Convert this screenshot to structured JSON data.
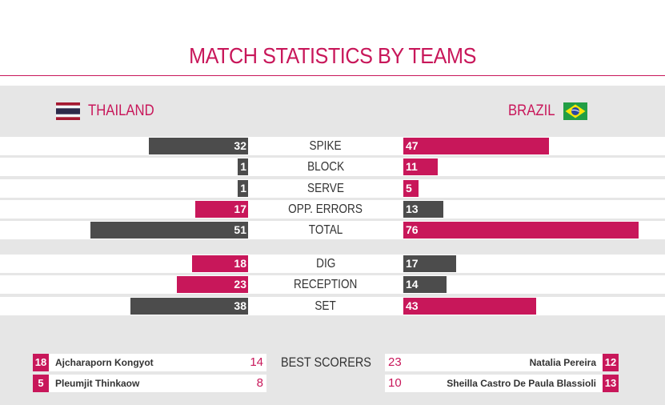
{
  "title": "MATCH STATISTICS BY TEAMS",
  "teams": {
    "left": {
      "name": "THAILAND",
      "flag": "thailand-flag"
    },
    "right": {
      "name": "BRAZIL",
      "flag": "brazil-flag"
    }
  },
  "colors": {
    "accent": "#c8175a",
    "dark": "#4c4c4c",
    "panel": "#e6e6e6"
  },
  "stats": [
    {
      "label": "SPIKE",
      "left": 32,
      "right": 47,
      "left_color": "gray",
      "right_color": "pink"
    },
    {
      "label": "BLOCK",
      "left": 1,
      "right": 11,
      "left_color": "gray",
      "right_color": "pink"
    },
    {
      "label": "SERVE",
      "left": 1,
      "right": 5,
      "left_color": "gray",
      "right_color": "pink"
    },
    {
      "label": "OPP. ERRORS",
      "left": 17,
      "right": 13,
      "left_color": "pink",
      "right_color": "gray"
    },
    {
      "label": "TOTAL",
      "left": 51,
      "right": 76,
      "left_color": "gray",
      "right_color": "pink"
    }
  ],
  "stats2": [
    {
      "label": "DIG",
      "left": 18,
      "right": 17,
      "left_color": "pink",
      "right_color": "gray"
    },
    {
      "label": "RECEPTION",
      "left": 23,
      "right": 14,
      "left_color": "pink",
      "right_color": "gray"
    },
    {
      "label": "SET",
      "left": 38,
      "right": 43,
      "left_color": "gray",
      "right_color": "pink"
    }
  ],
  "best_scorers": {
    "label": "BEST SCORERS",
    "left": [
      {
        "number": "18",
        "name": "Ajcharaporn Kongyot",
        "points": "14"
      },
      {
        "number": "5",
        "name": "Pleumjit Thinkaow",
        "points": "8"
      }
    ],
    "right": [
      {
        "number": "12",
        "name": "Natalia Pereira",
        "points": "23"
      },
      {
        "number": "13",
        "name": "Sheilla Castro De Paula Blassioli",
        "points": "10"
      }
    ]
  }
}
